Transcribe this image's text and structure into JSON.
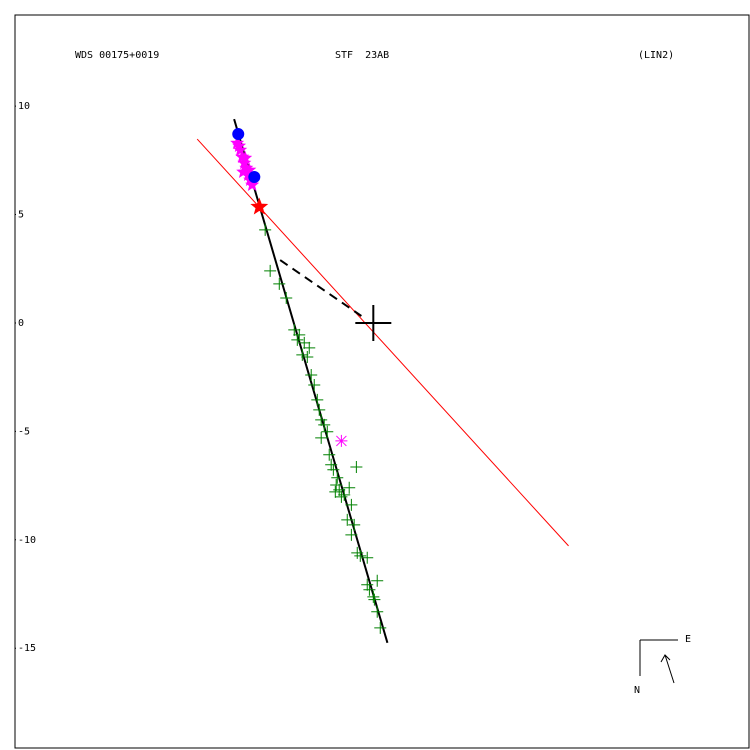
{
  "chart_data": {
    "type": "scatter",
    "title": "WDS 00175+0019",
    "subtitle": "STF  23AB",
    "annotation": "(LIN2)",
    "compass": {
      "east": "E",
      "north": "N"
    },
    "xlim": [
      -16.5,
      17.3
    ],
    "ylim": [
      -19.6,
      14.2
    ],
    "yticks": [
      10,
      5,
      0,
      -5,
      -10,
      -15
    ],
    "series": [
      {
        "marker": "plus",
        "color": "#008000",
        "x": [
          -4.98,
          -4.75,
          -4.33,
          -4.01,
          -3.64,
          -3.41,
          -3.18,
          -3.5,
          -3.27,
          -3.04,
          -2.95,
          -2.86,
          -2.72,
          -2.58,
          -2.49,
          -2.4,
          -2.26,
          -2.4,
          -2.12,
          -2.03,
          -1.94,
          -1.84,
          -1.66,
          -1.71,
          -1.57,
          -1.47,
          -1.75,
          -1.34,
          -1.11,
          -0.78,
          -1.01,
          -1.2,
          -0.88,
          -1.01,
          -0.74,
          -0.6,
          -0.28,
          -0.28,
          -0.18,
          0,
          0.18,
          0.05,
          0.18,
          0.32
        ],
        "values": [
          4.29,
          2.4,
          1.8,
          1.15,
          -0.32,
          -0.55,
          -0.92,
          -0.78,
          -1.47,
          -1.57,
          -1.15,
          -2.4,
          -2.86,
          -3.55,
          -4.01,
          -4.47,
          -4.7,
          -5.3,
          -5.02,
          -6.08,
          -6.54,
          -6.77,
          -7.14,
          -7.47,
          -7.7,
          -8.02,
          -7.79,
          -7.93,
          -7.6,
          -6.64,
          -8.39,
          -9.08,
          -9.31,
          -9.77,
          -10.6,
          -10.74,
          -10.83,
          -12.07,
          -12.3,
          -12.63,
          -11.89,
          -12.76,
          -13.32,
          -14.06
        ]
      },
      {
        "marker": "star",
        "color": "#ff00ff",
        "x": [
          -6.27,
          -6.18,
          -6.13,
          -6.04,
          -5.9,
          -5.94,
          -5.85,
          -5.99,
          -5.71,
          -5.76,
          -5.67,
          -5.58
        ],
        "values": [
          8.29,
          8.16,
          7.97,
          7.65,
          7.6,
          7.37,
          7.14,
          6.96,
          7.05,
          6.82,
          6.59,
          6.36
        ]
      },
      {
        "marker": "circle",
        "color": "#0000ff",
        "x": [
          -6.22,
          -5.48
        ],
        "values": [
          8.71,
          6.73
        ]
      },
      {
        "marker": "star5",
        "color": "#ff0000",
        "x": [
          -5.25
        ],
        "values": [
          5.35
        ]
      },
      {
        "marker": "asterisk",
        "color": "#ff00ff",
        "x": [
          -1.47
        ],
        "values": [
          -5.44
        ]
      },
      {
        "marker": "bigcross",
        "color": "#000000",
        "x": [
          0
        ],
        "values": [
          0
        ]
      }
    ],
    "lines": [
      {
        "color": "#000000",
        "style": "solid",
        "width": 2,
        "x": [
          -6.41,
          0.65
        ],
        "values": [
          9.4,
          -14.75
        ]
      },
      {
        "color": "#ff0000",
        "style": "solid",
        "width": 1,
        "x": [
          -8.11,
          8.99
        ],
        "values": [
          8.48,
          -10.28
        ]
      },
      {
        "color": "#000000",
        "style": "dashed",
        "width": 2,
        "x": [
          -4.29,
          -0.55
        ],
        "values": [
          2.9,
          0.32
        ]
      }
    ]
  }
}
